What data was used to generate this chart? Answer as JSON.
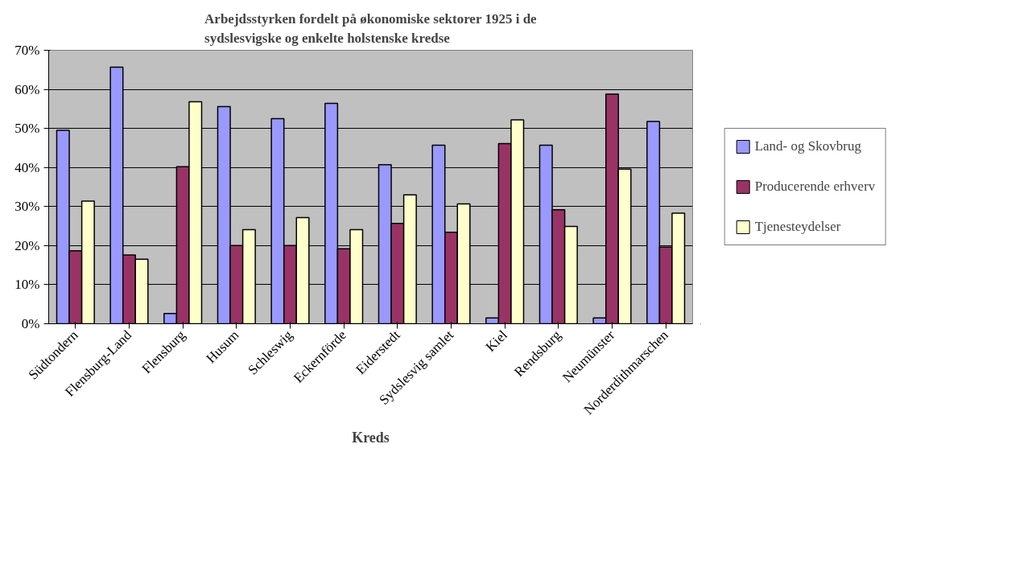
{
  "chart_data": {
    "type": "bar",
    "title": "Arbejdsstyrken fordelt på økonomiske sektorer 1925 i de sydslesvigske og enkelte holstenske kredse",
    "xlabel": "Kreds",
    "categories": [
      "Südtondern",
      "Flensburg-Land",
      "Flensburg",
      "Husum",
      "Schleswig",
      "Eckernförde",
      "Eiderstedt",
      "Sydslesvig samlet",
      "Kiel",
      "Rendsburg",
      "Neumünster",
      "Norderdithmarschen"
    ],
    "series": [
      {
        "name": "Land- og Skovbrug",
        "color": "#9999ff",
        "values": [
          49.5,
          65.7,
          2.6,
          55.6,
          52.5,
          56.4,
          40.7,
          45.7,
          1.5,
          45.7,
          1.5,
          51.8
        ]
      },
      {
        "name": "Producerende erhverv",
        "color": "#993366",
        "values": [
          18.7,
          17.6,
          40.2,
          20,
          20,
          19.2,
          25.7,
          23.4,
          46.1,
          29.2,
          58.8,
          19.6
        ]
      },
      {
        "name": "Tjenesteydelser",
        "color": "#ffffcc",
        "values": [
          31.4,
          16.5,
          56.8,
          24.1,
          27.2,
          24.1,
          33,
          30.7,
          52.2,
          24.9,
          39.6,
          28.3
        ]
      }
    ],
    "ylim": [
      0,
      70
    ],
    "yticks": [
      {
        "value": 0,
        "label": "0%"
      },
      {
        "value": 10,
        "label": "10%"
      },
      {
        "value": 20,
        "label": "20%"
      },
      {
        "value": 30,
        "label": "30%"
      },
      {
        "value": 40,
        "label": "40%"
      },
      {
        "value": 50,
        "label": "50%"
      },
      {
        "value": 60,
        "label": "60%"
      },
      {
        "value": 70,
        "label": "70%"
      }
    ],
    "grid": "y",
    "legend": "right"
  }
}
